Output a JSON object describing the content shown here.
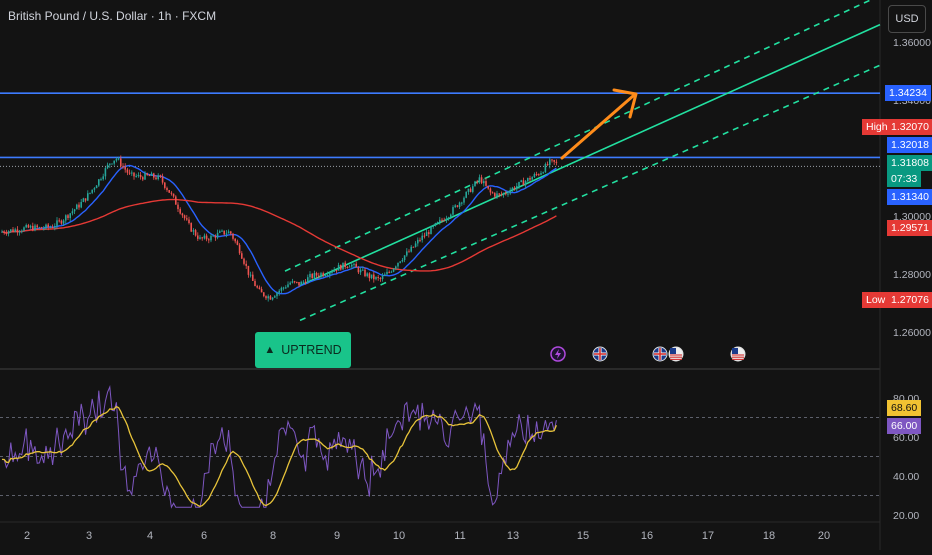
{
  "header": {
    "title": "British Pound / U.S. Dollar · 1h · FXCM",
    "currency_button": "USD"
  },
  "colors": {
    "background": "#131313",
    "candle_up": "#26a69a",
    "candle_down": "#ef5350",
    "ma_blue": "#2962ff",
    "ma_red": "#e53935",
    "channel": "#22e0a0",
    "resistance": "#3d7bff",
    "arrow": "#ff8c1a",
    "rsi_line": "#7e57c2",
    "rsi_ma": "#e7c33a"
  },
  "price_axis": {
    "ticks": [
      "1.36000",
      "1.34000",
      "1.30000",
      "1.28000",
      "1.26000"
    ]
  },
  "price_labels": {
    "resistance": "1.34234",
    "high_tag": "High",
    "high": "1.32070",
    "level_2": "1.32018",
    "current": "1.31808",
    "countdown": "07:33",
    "ma_blue": "1.31340",
    "ma_red": "1.29571",
    "low_tag": "Low",
    "low": "1.27076"
  },
  "annotation": {
    "label": "UPTREND",
    "icon": "triangle-up-icon"
  },
  "events": [
    "lightning-icon",
    "uk-flag-icon",
    "uk-flag-icon",
    "us-flag-icon",
    "us-flag-icon"
  ],
  "rsi_axis": {
    "ticks": [
      "80.00",
      "60.00",
      "40.00",
      "20.00"
    ],
    "rsi_value": "68.60",
    "rsi_ma_value": "66.00"
  },
  "time_axis": {
    "labels": [
      "2",
      "3",
      "4",
      "6",
      "8",
      "9",
      "10",
      "11",
      "13",
      "15",
      "16",
      "17",
      "18",
      "20"
    ]
  },
  "chart_data": {
    "type": "candlestick",
    "title": "British Pound / U.S. Dollar · 1h · FXCM",
    "price_ylim": [
      1.25,
      1.365
    ],
    "horizontal_levels": [
      1.34234,
      1.32018
    ],
    "price_path": [
      [
        0,
        1.2945
      ],
      [
        10,
        1.295
      ],
      [
        20,
        1.2955
      ],
      [
        30,
        1.296
      ],
      [
        40,
        1.2958
      ],
      [
        50,
        1.2962
      ],
      [
        60,
        1.298
      ],
      [
        70,
        1.301
      ],
      [
        80,
        1.304
      ],
      [
        90,
        1.308
      ],
      [
        100,
        1.313
      ],
      [
        110,
        1.3185
      ],
      [
        116,
        1.32
      ],
      [
        122,
        1.3175
      ],
      [
        130,
        1.314
      ],
      [
        140,
        1.3135
      ],
      [
        150,
        1.3138
      ],
      [
        160,
        1.313
      ],
      [
        170,
        1.308
      ],
      [
        180,
        1.302
      ],
      [
        190,
        1.296
      ],
      [
        200,
        1.292
      ],
      [
        210,
        1.2925
      ],
      [
        220,
        1.294
      ],
      [
        230,
        1.2945
      ],
      [
        240,
        1.288
      ],
      [
        250,
        1.279
      ],
      [
        260,
        1.2735
      ],
      [
        270,
        1.272
      ],
      [
        280,
        1.2745
      ],
      [
        290,
        1.277
      ],
      [
        300,
        1.2765
      ],
      [
        310,
        1.279
      ],
      [
        320,
        1.28
      ],
      [
        330,
        1.281
      ],
      [
        340,
        1.2825
      ],
      [
        350,
        1.2835
      ],
      [
        360,
        1.281
      ],
      [
        370,
        1.279
      ],
      [
        380,
        1.278
      ],
      [
        390,
        1.281
      ],
      [
        400,
        1.285
      ],
      [
        410,
        1.288
      ],
      [
        420,
        1.292
      ],
      [
        430,
        1.295
      ],
      [
        440,
        1.298
      ],
      [
        450,
        1.301
      ],
      [
        460,
        1.305
      ],
      [
        470,
        1.309
      ],
      [
        480,
        1.313
      ],
      [
        490,
        1.308
      ],
      [
        500,
        1.307
      ],
      [
        510,
        1.309
      ],
      [
        520,
        1.311
      ],
      [
        530,
        1.313
      ],
      [
        540,
        1.315
      ],
      [
        550,
        1.3185
      ],
      [
        558,
        1.3181
      ]
    ],
    "rsi_ylim": [
      15,
      90
    ],
    "rsi_levels": [
      70,
      50,
      30
    ],
    "rsi_last": 68.6,
    "rsi_ma_last": 66.0
  }
}
